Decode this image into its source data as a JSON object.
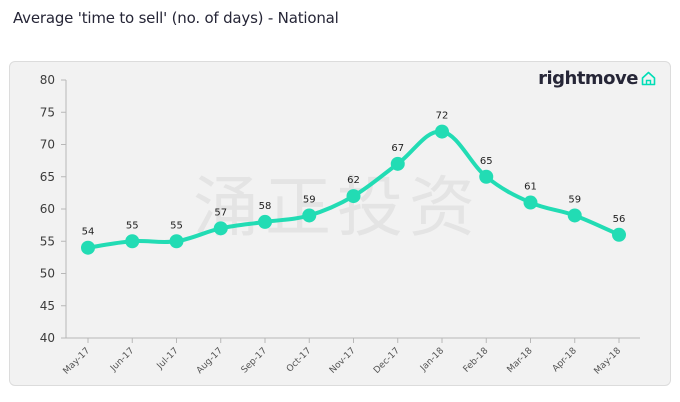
{
  "page": {
    "title": "Average 'time to sell' (no. of days) - National"
  },
  "brand": {
    "name": "rightmove",
    "icon": "house-outline-icon",
    "accent": "#00deb6"
  },
  "watermark": {
    "text": "涌正投资"
  },
  "chart_data": {
    "type": "line",
    "title": "Average 'time to sell' (no. of days) - National",
    "categories": [
      "May-17",
      "Jun-17",
      "Jul-17",
      "Aug-17",
      "Sep-17",
      "Oct-17",
      "Nov-17",
      "Dec-17",
      "Jan-18",
      "Feb-18",
      "Mar-18",
      "Apr-18",
      "May-18"
    ],
    "series": [
      {
        "values": [
          54,
          55,
          55,
          57,
          58,
          59,
          62,
          67,
          72,
          65,
          61,
          59,
          56
        ],
        "color": "#22dcb4"
      }
    ],
    "y_ticks": [
      40,
      45,
      50,
      55,
      60,
      65,
      70,
      75,
      80
    ],
    "ylim": [
      40,
      80
    ],
    "xlabel": "",
    "ylabel": "",
    "grid": false,
    "legend": "none",
    "smooth": true
  }
}
